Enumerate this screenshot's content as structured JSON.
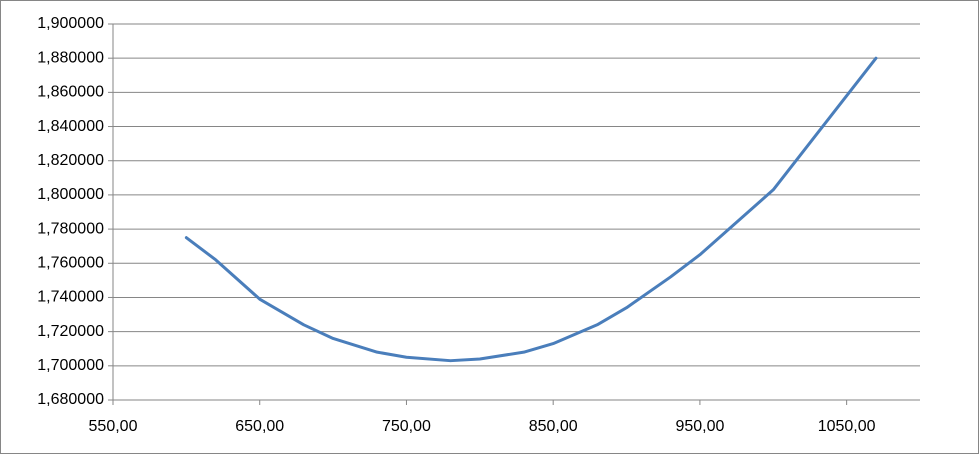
{
  "chart_data": {
    "type": "line",
    "x": [
      600,
      620,
      650,
      680,
      700,
      730,
      750,
      780,
      800,
      830,
      850,
      880,
      900,
      930,
      950,
      1000,
      1070
    ],
    "values": [
      1.775,
      1.762,
      1.739,
      1.724,
      1.716,
      1.708,
      1.705,
      1.703,
      1.704,
      1.708,
      1.713,
      1.724,
      1.734,
      1.752,
      1.765,
      1.803,
      1.88
    ],
    "color": "#4a7ebb",
    "xlim": [
      550,
      1100
    ],
    "xticks": [
      {
        "value": 550,
        "label": "550,00"
      },
      {
        "value": 650,
        "label": "650,00"
      },
      {
        "value": 750,
        "label": "750,00"
      },
      {
        "value": 850,
        "label": "850,00"
      },
      {
        "value": 950,
        "label": "950,00"
      },
      {
        "value": 1050,
        "label": "1050,00"
      }
    ],
    "ylim": [
      1.68,
      1.9
    ],
    "yticks": [
      {
        "value": 1.68,
        "label": "1,680000"
      },
      {
        "value": 1.7,
        "label": "1,700000"
      },
      {
        "value": 1.72,
        "label": "1,720000"
      },
      {
        "value": 1.74,
        "label": "1,740000"
      },
      {
        "value": 1.76,
        "label": "1,760000"
      },
      {
        "value": 1.78,
        "label": "1,780000"
      },
      {
        "value": 1.8,
        "label": "1,800000"
      },
      {
        "value": 1.82,
        "label": "1,820000"
      },
      {
        "value": 1.84,
        "label": "1,840000"
      },
      {
        "value": 1.86,
        "label": "1,860000"
      },
      {
        "value": 1.88,
        "label": "1,880000"
      },
      {
        "value": 1.9,
        "label": "1,900000"
      }
    ],
    "grid": true
  }
}
